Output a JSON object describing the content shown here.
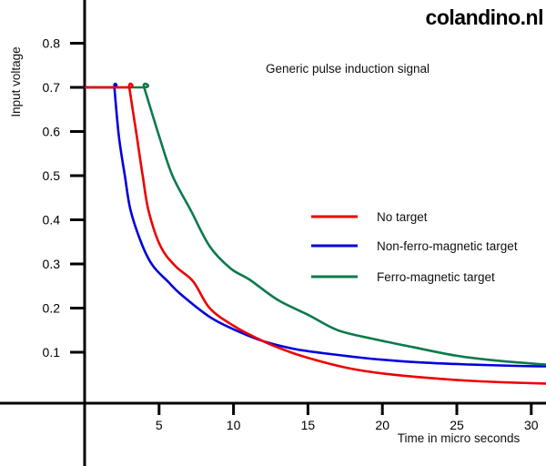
{
  "logo": {
    "text": "colandino.nl"
  },
  "chart_data": {
    "type": "line",
    "title": "Generic pulse induction signal",
    "xlabel": "Time in micro seconds",
    "ylabel": "Input voltage",
    "x_ticks": [
      5,
      10,
      15,
      20,
      25,
      30
    ],
    "y_ticks": [
      0.1,
      0.2,
      0.3,
      0.4,
      0.5,
      0.6,
      0.7,
      0.8
    ],
    "xlim": [
      0,
      31
    ],
    "ylim": [
      -0.02,
      0.92
    ],
    "grid": false,
    "legend_position": "center-right",
    "axis_color": "#000000",
    "series": [
      {
        "name": "No target",
        "color": "#ee0000",
        "flat_level_v": 0.7,
        "decay_start_us": 3,
        "points": [
          [
            0,
            0.7
          ],
          [
            3,
            0.7
          ],
          [
            3.5,
            0.59
          ],
          [
            3.9,
            0.5
          ],
          [
            4.3,
            0.42
          ],
          [
            5.1,
            0.34
          ],
          [
            6.1,
            0.295
          ],
          [
            7.3,
            0.26
          ],
          [
            8.4,
            0.2
          ],
          [
            10,
            0.16
          ],
          [
            12,
            0.125
          ],
          [
            14,
            0.098
          ],
          [
            16,
            0.078
          ],
          [
            18,
            0.062
          ],
          [
            20,
            0.052
          ],
          [
            23,
            0.042
          ],
          [
            26,
            0.035
          ],
          [
            29,
            0.031
          ],
          [
            31,
            0.029
          ]
        ]
      },
      {
        "name": "Non-ferro-magnetic target",
        "color": "#0000dd",
        "flat_level_v": 0.7,
        "decay_start_us": 2,
        "points": [
          [
            0,
            0.7
          ],
          [
            2,
            0.7
          ],
          [
            2.3,
            0.59
          ],
          [
            2.7,
            0.5
          ],
          [
            3.1,
            0.42
          ],
          [
            3.9,
            0.34
          ],
          [
            4.6,
            0.295
          ],
          [
            5.6,
            0.26
          ],
          [
            6.5,
            0.23
          ],
          [
            8.4,
            0.18
          ],
          [
            10,
            0.152
          ],
          [
            12,
            0.125
          ],
          [
            14,
            0.108
          ],
          [
            16,
            0.098
          ],
          [
            18,
            0.09
          ],
          [
            20,
            0.083
          ],
          [
            23,
            0.076
          ],
          [
            26,
            0.072
          ],
          [
            29,
            0.069
          ],
          [
            31,
            0.068
          ]
        ]
      },
      {
        "name": "Ferro-magnetic target",
        "color": "#0b7a4a",
        "flat_level_v": 0.7,
        "decay_start_us": 4,
        "points": [
          [
            0,
            0.7
          ],
          [
            4,
            0.7
          ],
          [
            5,
            0.59
          ],
          [
            5.9,
            0.5
          ],
          [
            7.15,
            0.42
          ],
          [
            8.4,
            0.34
          ],
          [
            9.8,
            0.29
          ],
          [
            11.1,
            0.264
          ],
          [
            13,
            0.218
          ],
          [
            15,
            0.185
          ],
          [
            17,
            0.15
          ],
          [
            19.4,
            0.13
          ],
          [
            22,
            0.112
          ],
          [
            25,
            0.092
          ],
          [
            28,
            0.08
          ],
          [
            31,
            0.072
          ]
        ]
      }
    ]
  }
}
